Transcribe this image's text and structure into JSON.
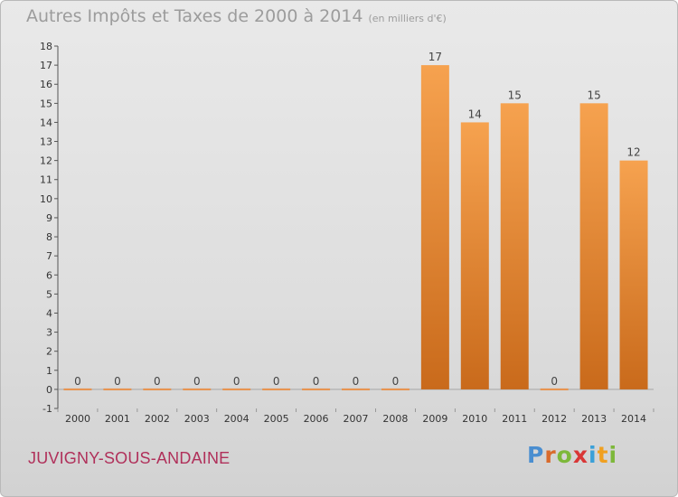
{
  "title": "Autres Impôts et Taxes de 2000 à 2014",
  "unit": "(en milliers d'€)",
  "commune": "JUVIGNY-SOUS-ANDAINE",
  "logo": {
    "letters": [
      "P",
      "r",
      "o",
      "x",
      "i",
      "t",
      "i"
    ],
    "colors": [
      "#4a8ed0",
      "#d96a2b",
      "#7db83a",
      "#d93636",
      "#3aa0d8",
      "#f0a020",
      "#7db83a"
    ]
  },
  "colors": {
    "bar_light": "#f6a24f",
    "bar_dark": "#c96a1b",
    "zero_bar": "#e8904a"
  },
  "chart_data": {
    "type": "bar",
    "categories": [
      "2000",
      "2001",
      "2002",
      "2003",
      "2004",
      "2005",
      "2006",
      "2007",
      "2008",
      "2009",
      "2010",
      "2011",
      "2012",
      "2013",
      "2014"
    ],
    "values": [
      0,
      0,
      0,
      0,
      0,
      0,
      0,
      0,
      0,
      17,
      14,
      15,
      0,
      15,
      12
    ],
    "data_labels": [
      "0",
      "0",
      "0",
      "0",
      "0",
      "0",
      "0",
      "0",
      "0",
      "17",
      "14",
      "15",
      "0",
      "15",
      "12"
    ],
    "ylim": [
      -1,
      18
    ],
    "yticks": [
      "-1",
      "0",
      "1",
      "2",
      "3",
      "4",
      "5",
      "6",
      "7",
      "8",
      "9",
      "10",
      "11",
      "12",
      "13",
      "14",
      "15",
      "16",
      "17",
      "18"
    ],
    "grid": false,
    "legend": "none"
  }
}
